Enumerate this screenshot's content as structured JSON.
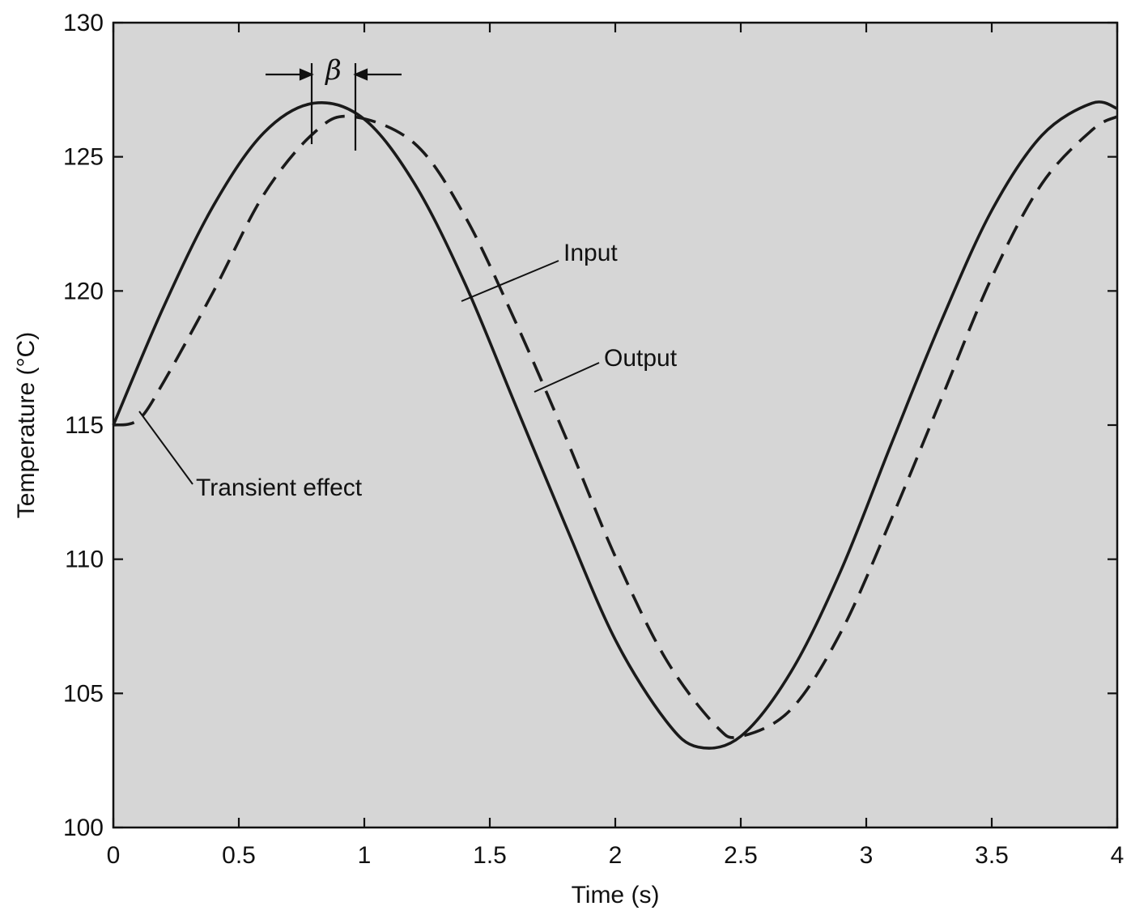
{
  "chart_data": {
    "type": "line",
    "title": "",
    "xlabel": "Time (s)",
    "ylabel": "Temperature (°C)",
    "xlim": [
      0,
      4
    ],
    "ylim": [
      100,
      130
    ],
    "xticks": [
      "0",
      "0.5",
      "1",
      "1.5",
      "2",
      "2.5",
      "3",
      "3.5",
      "4"
    ],
    "yticks": [
      "100",
      "105",
      "110",
      "115",
      "120",
      "125",
      "130"
    ],
    "grid": false,
    "background_color": "#d6d6d6",
    "line_color": "#1a1a1a",
    "series": [
      {
        "name": "Input",
        "style": "solid",
        "x": [
          0,
          0.2,
          0.4,
          0.6,
          0.8,
          1.0,
          1.2,
          1.4,
          1.6,
          1.8,
          2.0,
          2.2,
          2.33,
          2.5,
          2.7,
          2.9,
          3.1,
          3.3,
          3.5,
          3.7,
          3.9,
          4.0
        ],
        "y": [
          115.0,
          119.4,
          123.2,
          125.9,
          127.0,
          126.4,
          124.0,
          120.3,
          115.8,
          111.3,
          107.0,
          104.0,
          103.0,
          103.4,
          105.8,
          109.6,
          114.3,
          118.9,
          123.0,
          125.8,
          127.0,
          126.8
        ]
      },
      {
        "name": "Output",
        "style": "dashed",
        "x": [
          0,
          0.1,
          0.2,
          0.4,
          0.6,
          0.8,
          0.95,
          1.2,
          1.4,
          1.6,
          1.8,
          2.0,
          2.2,
          2.4,
          2.5,
          2.7,
          2.9,
          3.1,
          3.3,
          3.5,
          3.7,
          3.9,
          4.0
        ],
        "y": [
          115.0,
          115.2,
          116.6,
          120.0,
          123.6,
          125.9,
          126.5,
          125.5,
          122.8,
          118.9,
          114.6,
          110.1,
          106.3,
          103.8,
          103.4,
          104.4,
          107.3,
          111.5,
          116.0,
          120.5,
          124.0,
          126.0,
          126.5
        ]
      }
    ],
    "annotations": [
      {
        "text": "β",
        "kind": "phase-shift"
      },
      {
        "text": "Input",
        "points_to": "Input"
      },
      {
        "text": "Output",
        "points_to": "Output"
      },
      {
        "text": "Transient effect",
        "points_to": "start"
      }
    ]
  }
}
